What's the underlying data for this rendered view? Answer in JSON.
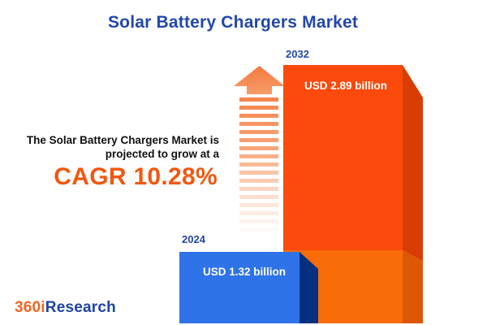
{
  "title": "Solar Battery Chargers Market",
  "message": {
    "line1": "The Solar Battery Chargers Market is",
    "line2": "projected to grow at a",
    "cagr": "CAGR 10.28%"
  },
  "chart_data": {
    "type": "bar",
    "categories": [
      "2024",
      "2032"
    ],
    "values": [
      1.32,
      2.89
    ],
    "unit": "USD billion",
    "value_labels": [
      "USD 1.32 billion",
      "USD 2.89 billion"
    ],
    "cagr_percent": 10.28,
    "title": "Solar Battery Chargers Market",
    "xlabel": "",
    "ylabel": "",
    "legend": "none",
    "grid": false,
    "style": "3d-infographic-bars",
    "colors": {
      "bar_2024_front": "#2E73E8",
      "bar_2024_side": "#05307F",
      "bar_2032_front_upper": "#FB4A0C",
      "bar_2032_front_lower": "#F96C09",
      "bar_2032_side_upper": "#D83E04",
      "bar_2032_side_lower": "#DD5804",
      "title_blue": "#2247AC",
      "accent_orange": "#F2570F",
      "arrow_orange": "#F5854B"
    }
  },
  "bars": [
    {
      "year": "2024",
      "value_label": "USD 1.32 billion"
    },
    {
      "year": "2032",
      "value_label": "USD 2.89 billion"
    }
  ],
  "icons": {
    "growth_arrow": "up-arrow-dashed"
  },
  "logo": {
    "part1": "360i",
    "part2": "Research"
  }
}
